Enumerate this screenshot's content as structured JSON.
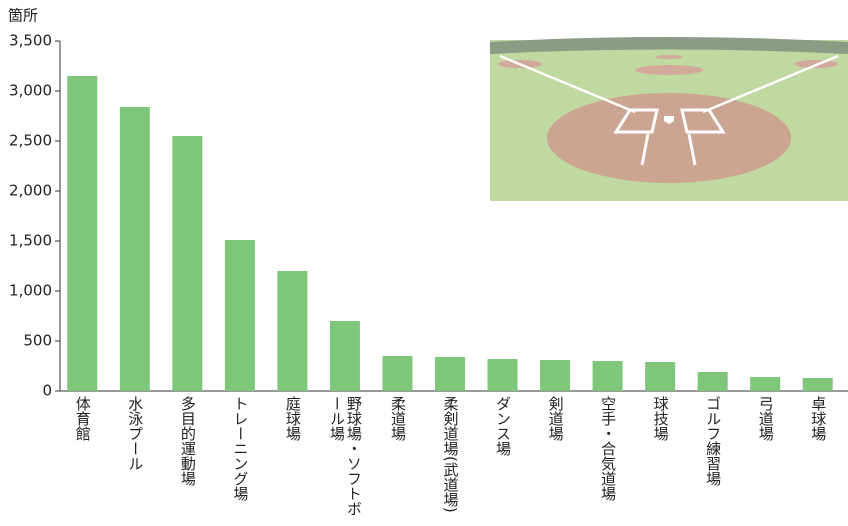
{
  "chart_data": {
    "type": "bar",
    "y_unit": "箇所",
    "categories": [
      "体育館",
      "水泳プール",
      "多目的運動場",
      "トレーニング場",
      "庭球場",
      "野球場・ソフトボール場",
      "柔道場",
      "柔剣道場(武道場)",
      "ダンス場",
      "剣道場",
      "空手・合気道場",
      "球技場",
      "ゴルフ練習場",
      "弓道場",
      "卓球場"
    ],
    "values": [
      3150,
      2840,
      2550,
      1510,
      1200,
      700,
      350,
      340,
      320,
      310,
      300,
      290,
      190,
      140,
      130
    ],
    "color": "#7dc67a",
    "ylim": [
      0,
      3500
    ],
    "yticks": [
      0,
      500,
      {
        "value": 1000,
        "label": "1,000"
      },
      {
        "value": 1500,
        "label": "1,500"
      },
      {
        "value": 2000,
        "label": "2,000"
      },
      {
        "value": 2500,
        "label": "2,500"
      },
      {
        "value": 3000,
        "label": "3,000"
      },
      {
        "value": 3500,
        "label": "3,500"
      }
    ],
    "grid": false
  }
}
